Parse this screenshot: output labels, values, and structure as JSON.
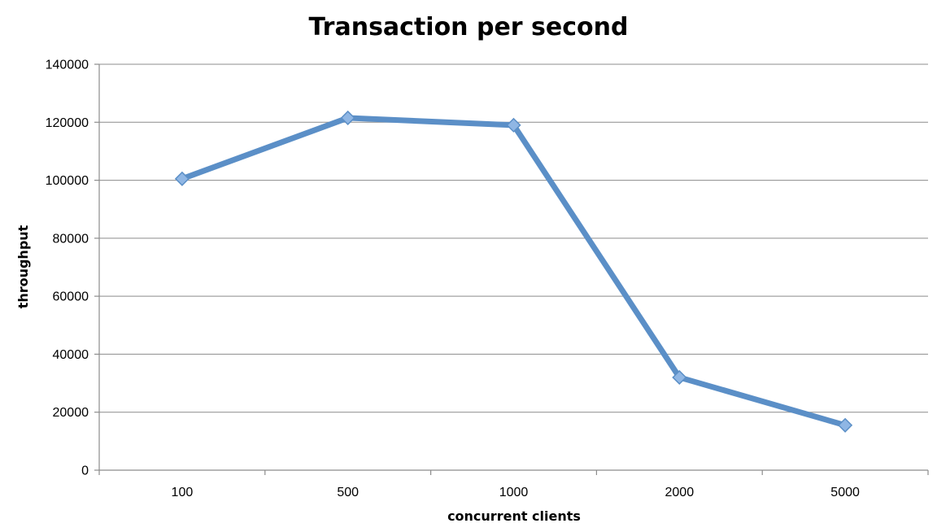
{
  "chart_data": {
    "type": "line",
    "title": "Transaction per second",
    "xlabel": "concurrent clients",
    "ylabel": "throughput",
    "categories": [
      "100",
      "500",
      "1000",
      "2000",
      "5000"
    ],
    "series": [
      {
        "values": [
          100500,
          121500,
          119000,
          32000,
          15500
        ],
        "color": "#5b8fc7",
        "marker_color": "#8fb6e4"
      }
    ],
    "ylim": [
      0,
      140000
    ],
    "yticks": [
      0,
      20000,
      40000,
      60000,
      80000,
      100000,
      120000,
      140000
    ],
    "ytick_labels": [
      "0",
      "20000",
      "40000",
      "60000",
      "80000",
      "100000",
      "120000",
      "140000"
    ],
    "grid": true,
    "legend": "none"
  }
}
